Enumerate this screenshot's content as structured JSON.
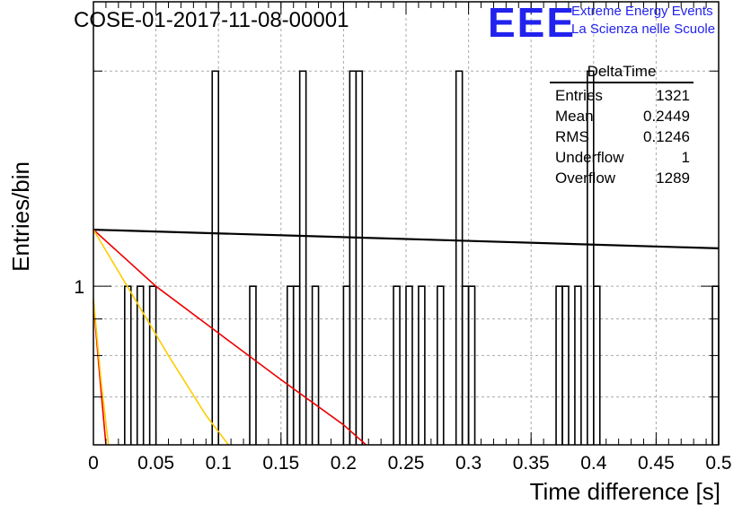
{
  "header": {
    "title": "COSE-01-2017-11-08-00001",
    "logo_text": "EEE",
    "logo_line1": "Extreme Energy Events",
    "logo_line2": "La Scienza nelle Scuole"
  },
  "stats_box": {
    "title": "DeltaTime",
    "rows": [
      {
        "label": "Entries",
        "value": "1321"
      },
      {
        "label": "Mean",
        "value": "0.2449"
      },
      {
        "label": "RMS",
        "value": "0.1246"
      },
      {
        "label": "Underflow",
        "value": "1"
      },
      {
        "label": "Overflow",
        "value": "1289"
      }
    ]
  },
  "colors": {
    "histogram": "#000000",
    "fit_black": "#000000",
    "fit_red": "#ee0000",
    "fit_yellow": "#ffcc00",
    "grid": "#aaaaaa",
    "logo": "#2222ee"
  },
  "chart_data": {
    "type": "histogram",
    "xlabel": "Time difference [s]",
    "ylabel": "Entries/bin",
    "xlim": [
      0,
      0.5
    ],
    "ylim": [
      0.6,
      2.5
    ],
    "y_scale": "log",
    "grid": true,
    "x_ticks": [
      "0",
      "0.05",
      "0.1",
      "0.15",
      "0.2",
      "0.25",
      "0.3",
      "0.35",
      "0.4",
      "0.45",
      "0.5"
    ],
    "y_ticks": [
      "1"
    ],
    "bin_width": 0.005,
    "bins": [
      {
        "x": 0.025,
        "y": 1
      },
      {
        "x": 0.035,
        "y": 1
      },
      {
        "x": 0.045,
        "y": 1
      },
      {
        "x": 0.095,
        "y": 2
      },
      {
        "x": 0.125,
        "y": 1
      },
      {
        "x": 0.155,
        "y": 1
      },
      {
        "x": 0.16,
        "y": 1
      },
      {
        "x": 0.165,
        "y": 2
      },
      {
        "x": 0.175,
        "y": 1
      },
      {
        "x": 0.2,
        "y": 1
      },
      {
        "x": 0.205,
        "y": 2
      },
      {
        "x": 0.21,
        "y": 2
      },
      {
        "x": 0.24,
        "y": 1
      },
      {
        "x": 0.25,
        "y": 1
      },
      {
        "x": 0.26,
        "y": 1
      },
      {
        "x": 0.275,
        "y": 1
      },
      {
        "x": 0.29,
        "y": 2
      },
      {
        "x": 0.295,
        "y": 1
      },
      {
        "x": 0.3,
        "y": 1
      },
      {
        "x": 0.37,
        "y": 1
      },
      {
        "x": 0.375,
        "y": 1
      },
      {
        "x": 0.385,
        "y": 1
      },
      {
        "x": 0.395,
        "y": 2
      },
      {
        "x": 0.4,
        "y": 1
      },
      {
        "x": 0.495,
        "y": 1
      }
    ],
    "fits": [
      {
        "color": "black",
        "points": [
          [
            0.0,
            1.2
          ],
          [
            0.5,
            1.13
          ]
        ]
      },
      {
        "color": "red",
        "points": [
          [
            0.0,
            1.2
          ],
          [
            0.05,
            1.0
          ],
          [
            0.1,
            0.86
          ],
          [
            0.15,
            0.74
          ],
          [
            0.2,
            0.64
          ],
          [
            0.218,
            0.6
          ]
        ]
      },
      {
        "color": "yellow",
        "points": [
          [
            0.0,
            1.2
          ],
          [
            0.03,
            0.98
          ],
          [
            0.06,
            0.8
          ],
          [
            0.09,
            0.66
          ],
          [
            0.108,
            0.6
          ]
        ]
      },
      {
        "color": "red",
        "points": [
          [
            0.0,
            0.95
          ],
          [
            0.005,
            0.75
          ],
          [
            0.01,
            0.6
          ]
        ]
      },
      {
        "color": "yellow",
        "points": [
          [
            0.0,
            0.96
          ],
          [
            0.006,
            0.74
          ],
          [
            0.012,
            0.6
          ]
        ]
      }
    ]
  }
}
